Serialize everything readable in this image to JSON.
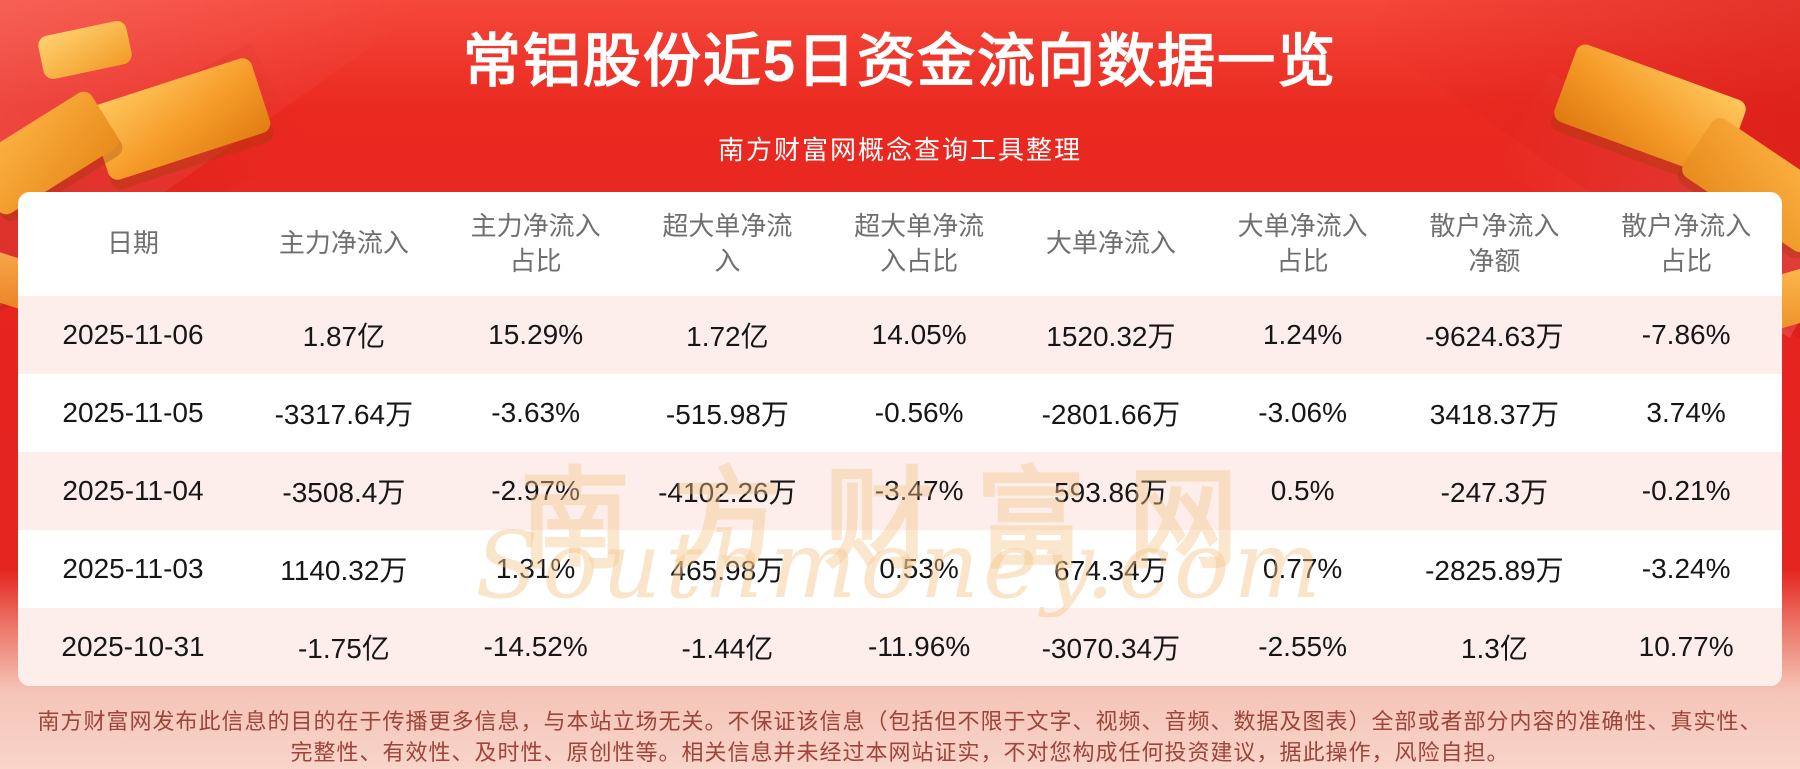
{
  "page": {
    "title": "常铝股份近5日资金流向数据一览",
    "subtitle": "南方财富网概念查询工具整理"
  },
  "chart_data": {
    "type": "table",
    "title": "常铝股份近5日资金流向数据一览",
    "subtitle": "南方财富网概念查询工具整理",
    "columns": [
      "日期",
      "主力净流入",
      "主力净流入占比",
      "超大单净流入",
      "超大单净流入占比",
      "大单净流入",
      "大单净流入占比",
      "散户净流入净额",
      "散户净流入占比"
    ],
    "rows": [
      [
        "2025-11-06",
        "1.87亿",
        "15.29%",
        "1.72亿",
        "14.05%",
        "1520.32万",
        "1.24%",
        "-9624.63万",
        "-7.86%"
      ],
      [
        "2025-11-05",
        "-3317.64万",
        "-3.63%",
        "-515.98万",
        "-0.56%",
        "-2801.66万",
        "-3.06%",
        "3418.37万",
        "3.74%"
      ],
      [
        "2025-11-04",
        "-3508.4万",
        "-2.97%",
        "-4102.26万",
        "-3.47%",
        "593.86万",
        "0.5%",
        "-247.3万",
        "-0.21%"
      ],
      [
        "2025-11-03",
        "1140.32万",
        "1.31%",
        "465.98万",
        "0.53%",
        "674.34万",
        "0.77%",
        "-2825.89万",
        "-3.24%"
      ],
      [
        "2025-10-31",
        "-1.75亿",
        "-14.52%",
        "-1.44亿",
        "-11.96%",
        "-3070.34万",
        "-2.55%",
        "1.3亿",
        "10.77%"
      ]
    ]
  },
  "watermark": {
    "cn": "南方财富网",
    "en": "Southmoney.com"
  },
  "footer": {
    "line1": "南方财富网发布此信息的目的在于传播更多信息，与本站立场无关。不保证该信息（包括但不限于文字、视频、音频、数据及图表）全部或者部分内容的准确性、真实性、",
    "line2": "完整性、有效性、及时性、原创性等。相关信息并未经过本网站证实，不对您构成任何投资建议，据此操作，风险自担。"
  },
  "colors": {
    "background_red": "#e52420",
    "accent_gold": "#f5a02c",
    "row_stripe": "#fdeeec",
    "header_text": "#6f6f6f",
    "body_text": "#161616",
    "footer_text": "#9e443b"
  }
}
